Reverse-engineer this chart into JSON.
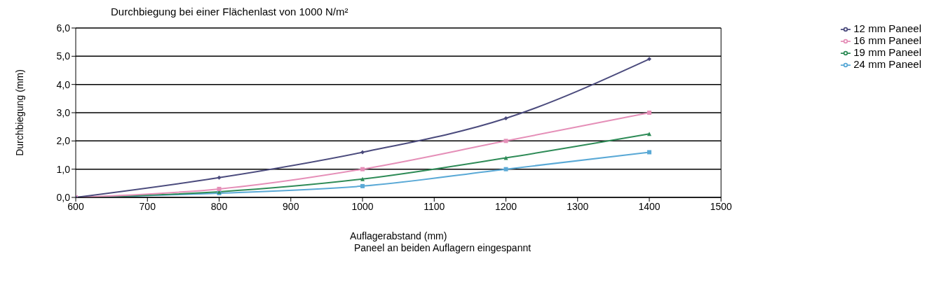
{
  "chart_data": {
    "type": "line",
    "title": "Durchbiegung bei einer Flächenlast von 1000 N/m²",
    "xlabel": "Auflagerabstand (mm)",
    "ylabel": "Durchbiegung (mm)",
    "annotations": [
      "Paneel an beiden Auflagern eingespannt"
    ],
    "x": [
      600,
      800,
      1000,
      1200,
      1400
    ],
    "series": [
      {
        "name": "12 mm Paneel",
        "color": "#4b4b7d",
        "marker": "diamond",
        "values": [
          0,
          0.7,
          1.6,
          2.8,
          4.9
        ]
      },
      {
        "name": "16 mm Paneel",
        "color": "#e58fb8",
        "marker": "square",
        "values": [
          0,
          0.3,
          1.0,
          2.0,
          3.0
        ]
      },
      {
        "name": "19 mm Paneel",
        "color": "#2e8b57",
        "marker": "triangle",
        "values": [
          0,
          0.2,
          0.65,
          1.4,
          2.25
        ]
      },
      {
        "name": "24 mm Paneel",
        "color": "#5aa9d6",
        "marker": "square",
        "values": [
          0,
          0.15,
          0.4,
          1.0,
          1.6
        ]
      }
    ],
    "xlim": [
      600,
      1500
    ],
    "xticks": [
      600,
      700,
      800,
      900,
      1000,
      1100,
      1200,
      1300,
      1400,
      1500
    ],
    "ylim": [
      0,
      6
    ],
    "yticks": [
      {
        "value": 0,
        "label": "0,0"
      },
      {
        "value": 1,
        "label": "1,0"
      },
      {
        "value": 2,
        "label": "2,0"
      },
      {
        "value": 3,
        "label": "3,0"
      },
      {
        "value": 4,
        "label": "4,0"
      },
      {
        "value": 5,
        "label": "5,0"
      },
      {
        "value": 6,
        "label": "6,0"
      }
    ],
    "grid": "y",
    "legend": "top right",
    "line_style": "solid"
  }
}
